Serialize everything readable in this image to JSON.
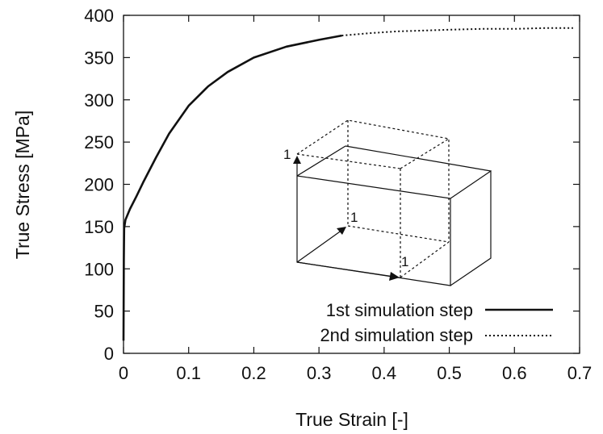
{
  "chart_data": {
    "type": "line",
    "xlabel": "True Strain [-]",
    "ylabel": "True Stress [MPa]",
    "xlim": [
      0,
      0.7
    ],
    "ylim": [
      0,
      400
    ],
    "xticks": [
      "0",
      "0.1",
      "0.2",
      "0.3",
      "0.4",
      "0.5",
      "0.6",
      "0.7"
    ],
    "yticks": [
      "0",
      "50",
      "100",
      "150",
      "200",
      "250",
      "300",
      "350",
      "400"
    ],
    "grid": false,
    "legend_position": "bottom-right",
    "series": [
      {
        "name": "1st simulation step",
        "style": "solid",
        "x": [
          0,
          0.0005,
          0.001,
          0.003,
          0.01,
          0.02,
          0.03,
          0.05,
          0.07,
          0.1,
          0.13,
          0.16,
          0.2,
          0.25,
          0.3,
          0.335
        ],
        "y": [
          15,
          110,
          148,
          158,
          171,
          186,
          202,
          232,
          260,
          293,
          316,
          333,
          350,
          363,
          371,
          376
        ]
      },
      {
        "name": "2nd simulation step",
        "style": "dotted",
        "x": [
          0.335,
          0.38,
          0.42,
          0.46,
          0.5,
          0.55,
          0.6,
          0.65,
          0.69
        ],
        "y": [
          376,
          379,
          381,
          382,
          383,
          384,
          384,
          385,
          385
        ]
      }
    ],
    "inset": {
      "description_labels": [
        "1",
        "1",
        "1"
      ]
    }
  }
}
